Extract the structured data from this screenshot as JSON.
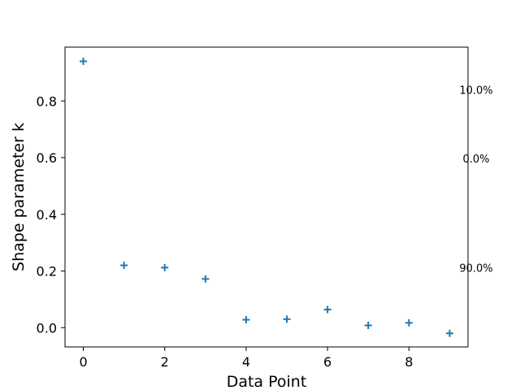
{
  "chart_data": {
    "type": "scatter",
    "xlabel": "Data Point",
    "ylabel": "Shape parameter k",
    "xlim": [
      -0.45,
      9.45
    ],
    "ylim": [
      -0.068,
      0.99
    ],
    "xticks": [
      0,
      2,
      4,
      6,
      8
    ],
    "yticks": [
      0.0,
      0.2,
      0.4,
      0.6,
      0.8
    ],
    "xtick_labels": [
      "0",
      "2",
      "4",
      "6",
      "8"
    ],
    "ytick_labels": [
      "0.0",
      "0.2",
      "0.4",
      "0.6",
      "0.8"
    ],
    "grid": false,
    "marker": "+",
    "color": "#1f77b4",
    "series": [
      {
        "x": [
          0,
          1,
          2,
          3,
          4,
          5,
          6,
          7,
          8,
          9
        ],
        "y": [
          0.94,
          0.22,
          0.212,
          0.172,
          0.028,
          0.03,
          0.064,
          0.008,
          0.017,
          -0.02
        ]
      }
    ],
    "annotations": [
      {
        "text": "10.0%",
        "y": 0.84
      },
      {
        "text": "0.0%",
        "y": 0.597
      },
      {
        "text": "90.0%",
        "y": 0.212
      }
    ]
  }
}
